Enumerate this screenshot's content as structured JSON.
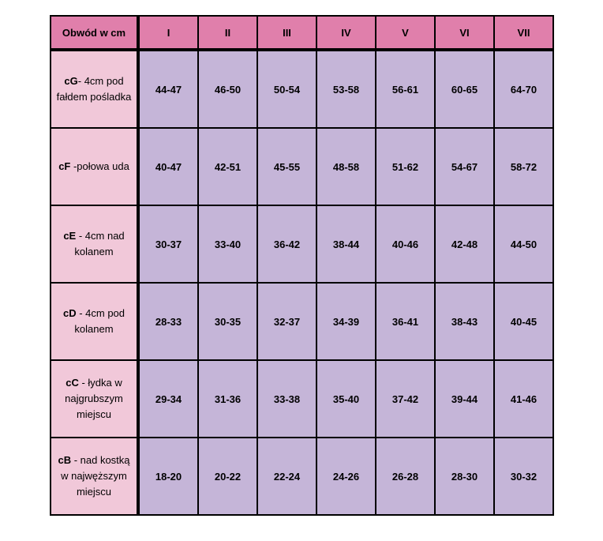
{
  "table": {
    "corner_label": "Obwód w cm",
    "columns": [
      "I",
      "II",
      "III",
      "IV",
      "V",
      "VI",
      "VII"
    ],
    "rows": [
      {
        "code": "cG",
        "label_rest": "- 4cm pod fałdem pośladka",
        "values": [
          "44-47",
          "46-50",
          "50-54",
          "53-58",
          "56-61",
          "60-65",
          "64-70"
        ]
      },
      {
        "code": "cF",
        "label_rest": " -połowa uda",
        "values": [
          "40-47",
          "42-51",
          "45-55",
          "48-58",
          "51-62",
          "54-67",
          "58-72"
        ]
      },
      {
        "code": "cE",
        "label_rest": " - 4cm nad kolanem",
        "values": [
          "30-37",
          "33-40",
          "36-42",
          "38-44",
          "40-46",
          "42-48",
          "44-50"
        ]
      },
      {
        "code": "cD",
        "label_rest": " - 4cm pod kolanem",
        "values": [
          "28-33",
          "30-35",
          "32-37",
          "34-39",
          "36-41",
          "38-43",
          "40-45"
        ]
      },
      {
        "code": "cC",
        "label_rest": " - łydka w najgrubszym miejscu",
        "values": [
          "29-34",
          "31-36",
          "33-38",
          "35-40",
          "37-42",
          "39-44",
          "41-46"
        ]
      },
      {
        "code": "cB",
        "label_rest": " - nad kostką w najwęższym miejscu",
        "values": [
          "18-20",
          "20-22",
          "22-24",
          "24-26",
          "26-28",
          "28-30",
          "30-32"
        ]
      }
    ]
  }
}
